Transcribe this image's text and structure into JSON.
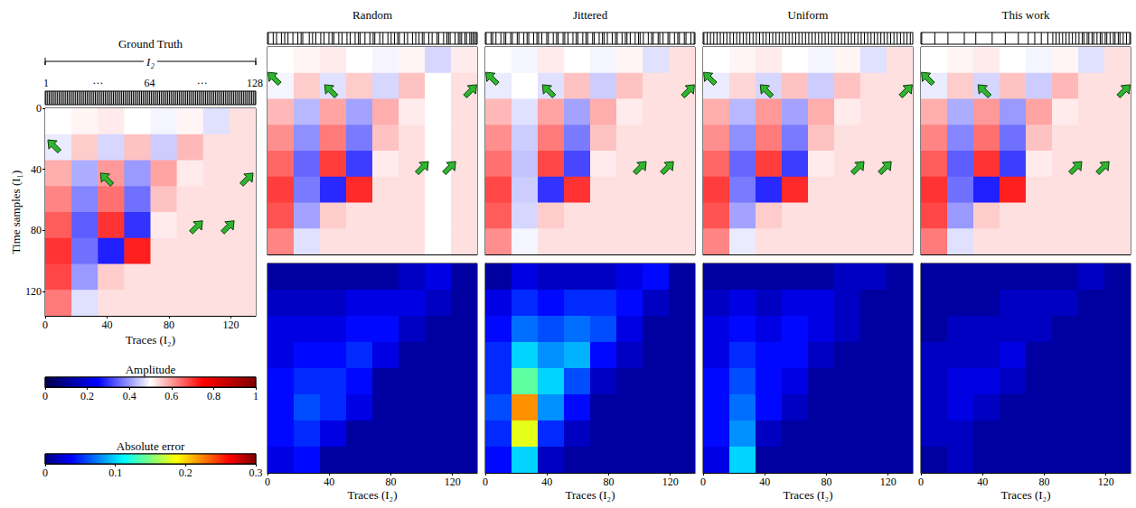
{
  "chart_data": {
    "type": "heatmap",
    "xlabel": "Traces (I₂)",
    "ylabel": "Time samples (I₁)",
    "xlim": [
      0,
      136
    ],
    "ylim": [
      0,
      136
    ],
    "xticks": [
      0,
      40,
      80,
      120
    ],
    "yticks": [
      0,
      40,
      80,
      120
    ],
    "x_edges": [
      0,
      17,
      34,
      51,
      68,
      85,
      102,
      119,
      136
    ],
    "y_edges": [
      0,
      17,
      34,
      51,
      68,
      85,
      102,
      119,
      136
    ],
    "sampling_axis": {
      "label": "I₂",
      "xlim": [
        0.5,
        128.5
      ],
      "xticks": [
        1,
        64,
        128
      ],
      "ellipsis": "···"
    },
    "colorbars": {
      "amplitude": {
        "title": "Amplitude",
        "range": [
          0,
          1
        ],
        "ticks": [
          0,
          0.2,
          0.4,
          0.6,
          0.8,
          1
        ],
        "colors": [
          "#00004c",
          "#0000ff",
          "#ffffff",
          "#ff0000",
          "#7f0000"
        ]
      },
      "error": {
        "title": "Absolute error",
        "range": [
          0,
          0.3
        ],
        "ticks": [
          0,
          0.1,
          0.2,
          0.3
        ],
        "colors": [
          "#00007f",
          "#0000ff",
          "#007fff",
          "#00ffff",
          "#7fff7f",
          "#ffff00",
          "#ff7f00",
          "#ff0000",
          "#7f0000"
        ]
      }
    },
    "ground_truth": {
      "title": "Ground Truth",
      "sampled": [
        1,
        2,
        3,
        4,
        5,
        6,
        7,
        8,
        9,
        10,
        11,
        12,
        13,
        14,
        15,
        16,
        17,
        18,
        19,
        20,
        21,
        22,
        23,
        24,
        25,
        26,
        27,
        28,
        29,
        30,
        31,
        32,
        33,
        34,
        35,
        36,
        37,
        38,
        39,
        40,
        41,
        42,
        43,
        44,
        45,
        46,
        47,
        48,
        49,
        50,
        51,
        52,
        53,
        54,
        55,
        56,
        57,
        58,
        59,
        60,
        61,
        62,
        63,
        64,
        65,
        66,
        67,
        68,
        69,
        70,
        71,
        72,
        73,
        74,
        75,
        76,
        77,
        78,
        79,
        80,
        81,
        82,
        83,
        84,
        85,
        86,
        87,
        88,
        89,
        90,
        91,
        92,
        93,
        94,
        95,
        96,
        97,
        98,
        99,
        100,
        101,
        102,
        103,
        104,
        105,
        106,
        107,
        108,
        109,
        110,
        111,
        112,
        113,
        114,
        115,
        116,
        117,
        118,
        119,
        120,
        121,
        122,
        123,
        124,
        125,
        126,
        127,
        128
      ],
      "cells": [
        [
          0.5,
          0.51,
          0.52,
          0.5,
          0.49,
          0.51,
          0.47,
          0.53
        ],
        [
          0.48,
          0.55,
          0.46,
          0.56,
          0.45,
          0.57,
          0.53,
          0.53
        ],
        [
          0.58,
          0.42,
          0.6,
          0.4,
          0.59,
          0.52,
          0.53,
          0.53
        ],
        [
          0.62,
          0.38,
          0.64,
          0.36,
          0.56,
          0.53,
          0.53,
          0.53
        ],
        [
          0.66,
          0.34,
          0.7,
          0.3,
          0.52,
          0.53,
          0.53,
          0.53
        ],
        [
          0.7,
          0.36,
          0.28,
          0.72,
          0.53,
          0.53,
          0.53,
          0.53
        ],
        [
          0.68,
          0.4,
          0.55,
          0.53,
          0.53,
          0.53,
          0.53,
          0.53
        ],
        [
          0.63,
          0.47,
          0.53,
          0.53,
          0.53,
          0.53,
          0.53,
          0.53
        ]
      ]
    },
    "methods": [
      {
        "title": "Random",
        "sampled": [
          1,
          4,
          6,
          9,
          11,
          13,
          16,
          19,
          21,
          22,
          26,
          28,
          30,
          33,
          35,
          38,
          40,
          41,
          44,
          46,
          49,
          51,
          54,
          56,
          57,
          60,
          63,
          65,
          66,
          69,
          71,
          74,
          76,
          78,
          80,
          81,
          84,
          86,
          89,
          91,
          93,
          95,
          96,
          99,
          101,
          104,
          105,
          108,
          110,
          111,
          112,
          115,
          117,
          118,
          119,
          121,
          122,
          124,
          125,
          126,
          127,
          128
        ],
        "cells": [
          [
            0.5,
            0.51,
            0.52,
            0.5,
            0.49,
            0.51,
            0.46,
            0.52
          ],
          [
            0.49,
            0.55,
            0.47,
            0.55,
            0.46,
            0.56,
            0.5,
            0.53
          ],
          [
            0.57,
            0.43,
            0.59,
            0.41,
            0.58,
            0.52,
            0.5,
            0.53
          ],
          [
            0.61,
            0.39,
            0.63,
            0.37,
            0.56,
            0.53,
            0.5,
            0.53
          ],
          [
            0.65,
            0.35,
            0.69,
            0.31,
            0.52,
            0.53,
            0.5,
            0.53
          ],
          [
            0.69,
            0.37,
            0.29,
            0.71,
            0.53,
            0.53,
            0.5,
            0.53
          ],
          [
            0.67,
            0.41,
            0.55,
            0.53,
            0.53,
            0.53,
            0.5,
            0.53
          ],
          [
            0.62,
            0.47,
            0.53,
            0.53,
            0.53,
            0.53,
            0.5,
            0.53
          ]
        ],
        "error_cells": [
          [
            0.01,
            0.01,
            0.01,
            0.01,
            0.01,
            0.02,
            0.03,
            0.01
          ],
          [
            0.02,
            0.02,
            0.02,
            0.03,
            0.03,
            0.03,
            0.02,
            0.01
          ],
          [
            0.03,
            0.03,
            0.03,
            0.04,
            0.04,
            0.02,
            0.01,
            0.01
          ],
          [
            0.03,
            0.04,
            0.04,
            0.05,
            0.03,
            0.01,
            0.01,
            0.01
          ],
          [
            0.04,
            0.05,
            0.05,
            0.04,
            0.01,
            0.01,
            0.01,
            0.01
          ],
          [
            0.04,
            0.06,
            0.05,
            0.03,
            0.01,
            0.01,
            0.01,
            0.01
          ],
          [
            0.04,
            0.05,
            0.03,
            0.01,
            0.01,
            0.01,
            0.01,
            0.01
          ],
          [
            0.03,
            0.04,
            0.01,
            0.01,
            0.01,
            0.01,
            0.01,
            0.01
          ]
        ]
      },
      {
        "title": "Jittered",
        "sampled": [
          1,
          4,
          5,
          7,
          10,
          12,
          13,
          16,
          17,
          20,
          21,
          24,
          26,
          27,
          30,
          32,
          33,
          35,
          38,
          39,
          42,
          44,
          45,
          48,
          49,
          51,
          54,
          56,
          57,
          60,
          62,
          63,
          66,
          67,
          70,
          72,
          73,
          75,
          78,
          80,
          81,
          84,
          86,
          87,
          89,
          92,
          94,
          95,
          97,
          100,
          102,
          103,
          106,
          107,
          109,
          112,
          113,
          116,
          118,
          119,
          122,
          123,
          126,
          128
        ],
        "cells": [
          [
            0.5,
            0.49,
            0.52,
            0.5,
            0.49,
            0.51,
            0.47,
            0.53
          ],
          [
            0.48,
            0.5,
            0.47,
            0.56,
            0.45,
            0.56,
            0.53,
            0.53
          ],
          [
            0.57,
            0.47,
            0.59,
            0.41,
            0.58,
            0.52,
            0.53,
            0.53
          ],
          [
            0.61,
            0.45,
            0.63,
            0.37,
            0.56,
            0.53,
            0.53,
            0.53
          ],
          [
            0.64,
            0.44,
            0.68,
            0.32,
            0.52,
            0.53,
            0.53,
            0.53
          ],
          [
            0.68,
            0.45,
            0.3,
            0.7,
            0.53,
            0.53,
            0.53,
            0.53
          ],
          [
            0.66,
            0.46,
            0.55,
            0.53,
            0.53,
            0.53,
            0.53,
            0.53
          ],
          [
            0.61,
            0.49,
            0.53,
            0.53,
            0.53,
            0.53,
            0.53,
            0.53
          ]
        ],
        "error_cells": [
          [
            0.01,
            0.03,
            0.02,
            0.02,
            0.02,
            0.03,
            0.04,
            0.01
          ],
          [
            0.03,
            0.05,
            0.04,
            0.05,
            0.05,
            0.04,
            0.02,
            0.01
          ],
          [
            0.04,
            0.07,
            0.06,
            0.07,
            0.06,
            0.03,
            0.01,
            0.01
          ],
          [
            0.05,
            0.1,
            0.08,
            0.09,
            0.04,
            0.02,
            0.01,
            0.01
          ],
          [
            0.05,
            0.14,
            0.1,
            0.06,
            0.02,
            0.01,
            0.01,
            0.01
          ],
          [
            0.06,
            0.22,
            0.08,
            0.04,
            0.01,
            0.01,
            0.01,
            0.01
          ],
          [
            0.05,
            0.18,
            0.05,
            0.02,
            0.01,
            0.01,
            0.01,
            0.01
          ],
          [
            0.04,
            0.1,
            0.02,
            0.01,
            0.01,
            0.01,
            0.01,
            0.01
          ]
        ]
      },
      {
        "title": "Uniform",
        "sampled": [
          1,
          3,
          5,
          7,
          9,
          11,
          13,
          15,
          17,
          19,
          21,
          23,
          25,
          27,
          29,
          31,
          33,
          35,
          37,
          39,
          41,
          43,
          45,
          47,
          49,
          51,
          53,
          55,
          57,
          59,
          61,
          63,
          65,
          67,
          69,
          71,
          73,
          75,
          77,
          79,
          81,
          83,
          85,
          87,
          89,
          91,
          93,
          95,
          97,
          99,
          101,
          103,
          105,
          107,
          109,
          111,
          113,
          115,
          117,
          119,
          121,
          123,
          125,
          127
        ],
        "cells": [
          [
            0.5,
            0.51,
            0.52,
            0.5,
            0.49,
            0.51,
            0.47,
            0.53
          ],
          [
            0.48,
            0.54,
            0.46,
            0.56,
            0.45,
            0.56,
            0.53,
            0.53
          ],
          [
            0.58,
            0.43,
            0.6,
            0.41,
            0.58,
            0.52,
            0.53,
            0.53
          ],
          [
            0.61,
            0.39,
            0.63,
            0.37,
            0.56,
            0.53,
            0.53,
            0.53
          ],
          [
            0.65,
            0.35,
            0.69,
            0.31,
            0.52,
            0.53,
            0.53,
            0.53
          ],
          [
            0.69,
            0.37,
            0.29,
            0.71,
            0.53,
            0.53,
            0.53,
            0.53
          ],
          [
            0.67,
            0.41,
            0.55,
            0.53,
            0.53,
            0.53,
            0.53,
            0.53
          ],
          [
            0.62,
            0.48,
            0.53,
            0.53,
            0.53,
            0.53,
            0.53,
            0.53
          ]
        ],
        "error_cells": [
          [
            0.01,
            0.01,
            0.01,
            0.01,
            0.01,
            0.02,
            0.02,
            0.01
          ],
          [
            0.02,
            0.03,
            0.02,
            0.03,
            0.03,
            0.02,
            0.01,
            0.01
          ],
          [
            0.03,
            0.04,
            0.03,
            0.04,
            0.03,
            0.02,
            0.01,
            0.01
          ],
          [
            0.03,
            0.05,
            0.04,
            0.04,
            0.02,
            0.01,
            0.01,
            0.01
          ],
          [
            0.04,
            0.06,
            0.04,
            0.03,
            0.01,
            0.01,
            0.01,
            0.01
          ],
          [
            0.04,
            0.07,
            0.04,
            0.02,
            0.01,
            0.01,
            0.01,
            0.01
          ],
          [
            0.04,
            0.08,
            0.02,
            0.01,
            0.01,
            0.01,
            0.01,
            0.01
          ],
          [
            0.03,
            0.1,
            0.01,
            0.01,
            0.01,
            0.01,
            0.01,
            0.01
          ]
        ]
      },
      {
        "title": "This work",
        "sampled": [
          1,
          9,
          17,
          27,
          34,
          44,
          52,
          60,
          66,
          70,
          74,
          78,
          81,
          83,
          85,
          87,
          89,
          91,
          93,
          95,
          97,
          99,
          100,
          102,
          103,
          105,
          106,
          108,
          110,
          111,
          113,
          114,
          116,
          118,
          119,
          121,
          122,
          124,
          126,
          128
        ],
        "cells": [
          [
            0.5,
            0.51,
            0.52,
            0.5,
            0.49,
            0.51,
            0.47,
            0.53
          ],
          [
            0.48,
            0.55,
            0.46,
            0.56,
            0.45,
            0.57,
            0.53,
            0.53
          ],
          [
            0.58,
            0.42,
            0.6,
            0.4,
            0.59,
            0.52,
            0.53,
            0.53
          ],
          [
            0.62,
            0.38,
            0.64,
            0.36,
            0.56,
            0.53,
            0.53,
            0.53
          ],
          [
            0.66,
            0.34,
            0.7,
            0.31,
            0.52,
            0.53,
            0.53,
            0.53
          ],
          [
            0.7,
            0.36,
            0.28,
            0.72,
            0.53,
            0.53,
            0.53,
            0.53
          ],
          [
            0.68,
            0.4,
            0.55,
            0.53,
            0.53,
            0.53,
            0.53,
            0.53
          ],
          [
            0.63,
            0.47,
            0.53,
            0.53,
            0.53,
            0.53,
            0.53,
            0.53
          ]
        ],
        "error_cells": [
          [
            0.01,
            0.01,
            0.01,
            0.01,
            0.01,
            0.01,
            0.02,
            0.01
          ],
          [
            0.01,
            0.01,
            0.01,
            0.02,
            0.02,
            0.02,
            0.01,
            0.01
          ],
          [
            0.01,
            0.02,
            0.02,
            0.02,
            0.02,
            0.01,
            0.01,
            0.01
          ],
          [
            0.02,
            0.02,
            0.02,
            0.03,
            0.01,
            0.01,
            0.01,
            0.01
          ],
          [
            0.02,
            0.03,
            0.03,
            0.02,
            0.01,
            0.01,
            0.01,
            0.01
          ],
          [
            0.02,
            0.03,
            0.02,
            0.01,
            0.01,
            0.01,
            0.01,
            0.01
          ],
          [
            0.02,
            0.02,
            0.01,
            0.01,
            0.01,
            0.01,
            0.01,
            0.01
          ],
          [
            0.01,
            0.02,
            0.01,
            0.01,
            0.01,
            0.01,
            0.01,
            0.01
          ]
        ]
      }
    ]
  }
}
